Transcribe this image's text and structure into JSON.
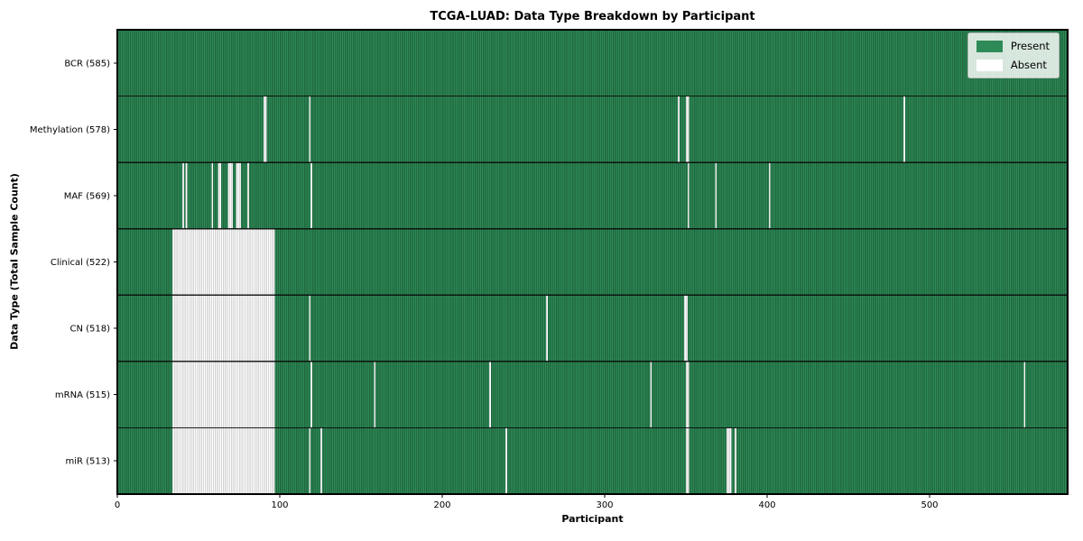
{
  "title": "TCGA-LUAD: Data Type Breakdown by Participant",
  "chart_data": {
    "type": "heatmap",
    "title": "TCGA-LUAD: Data Type Breakdown by Participant",
    "xlabel": "Participant",
    "ylabel": "Data Type (Total Sample Count)",
    "x_ticks": [
      0,
      100,
      200,
      300,
      400,
      500
    ],
    "x_range": [
      0,
      585
    ],
    "n_participants": 585,
    "grid": false,
    "legend_position": "upper right",
    "legend": [
      {
        "label": "Present",
        "color": "#2e8b57"
      },
      {
        "label": "Absent",
        "color": "#ffffff"
      }
    ],
    "colors": {
      "present_fill": "#2e8b57",
      "present_edge": "#103f24",
      "absent_fill": "#ffffff",
      "absent_edge": "#a3a3a3",
      "separator": "#0a0a0a",
      "plot_border": "#000000"
    },
    "rows": [
      {
        "label": "BCR (585)",
        "data_type": "BCR",
        "present_count": 585,
        "absent": []
      },
      {
        "label": "Methylation (578)",
        "data_type": "Methylation",
        "present_count": 578,
        "absent": [
          [
            90,
            91
          ],
          118,
          345,
          [
            350,
            351
          ],
          484
        ]
      },
      {
        "label": "MAF (569)",
        "data_type": "MAF",
        "present_count": 569,
        "absent": [
          40,
          42,
          58,
          62,
          63,
          [
            68,
            70
          ],
          [
            73,
            75
          ],
          80,
          119,
          351,
          368,
          401
        ]
      },
      {
        "label": "Clinical (522)",
        "data_type": "Clinical",
        "present_count": 522,
        "absent": [
          [
            34,
            96
          ]
        ]
      },
      {
        "label": "CN (518)",
        "data_type": "CN",
        "present_count": 518,
        "absent": [
          [
            34,
            96
          ],
          118,
          264,
          [
            349,
            350
          ]
        ]
      },
      {
        "label": "mRNA (515)",
        "data_type": "mRNA",
        "present_count": 515,
        "absent": [
          [
            34,
            96
          ],
          119,
          158,
          229,
          328,
          [
            350,
            351
          ],
          558
        ]
      },
      {
        "label": "miR (513)",
        "data_type": "miR",
        "present_count": 513,
        "absent": [
          [
            34,
            96
          ],
          118,
          125,
          239,
          [
            350,
            351
          ],
          [
            375,
            377
          ],
          380
        ]
      }
    ]
  }
}
